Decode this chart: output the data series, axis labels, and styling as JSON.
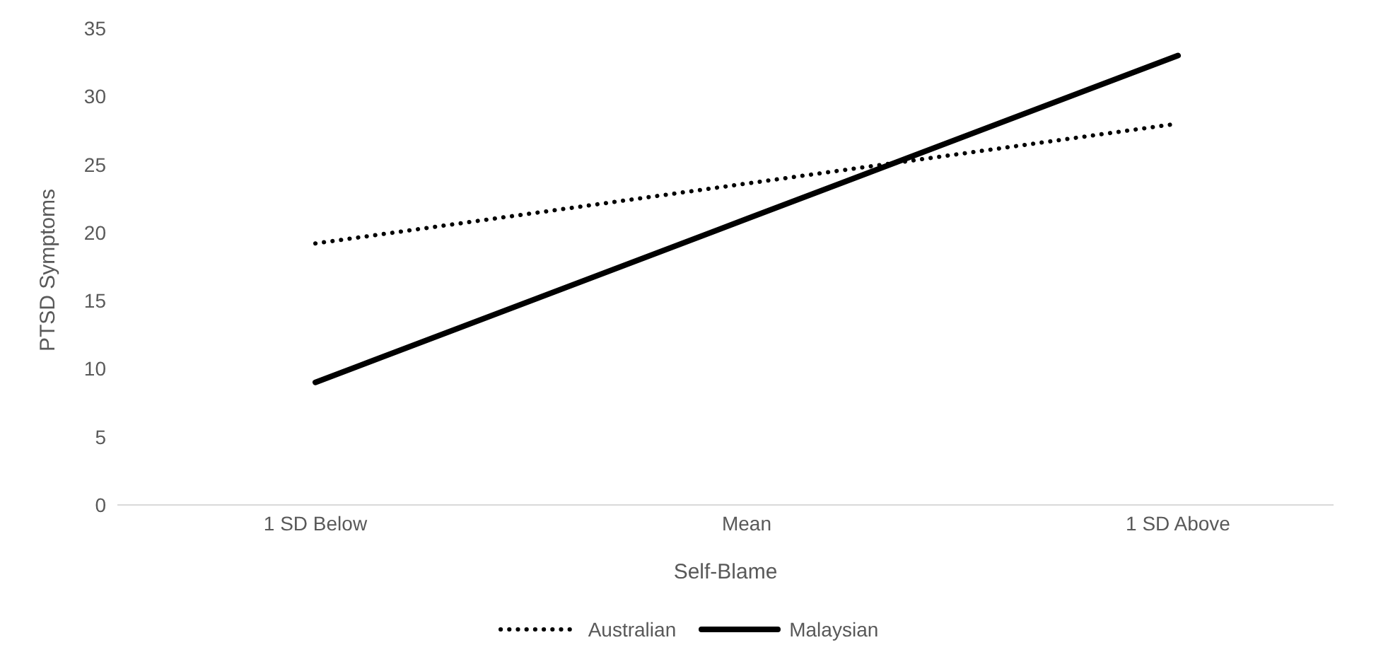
{
  "chart_data": {
    "type": "line",
    "xlabel": "Self-Blame",
    "ylabel": "PTSD Symptoms",
    "categories": [
      "1 SD Below",
      "Mean",
      "1 SD Above"
    ],
    "series": [
      {
        "name": "Australian",
        "color": "#000000",
        "line_style": "dotted",
        "values": [
          19.2,
          23.6,
          28
        ]
      },
      {
        "name": "Malaysian",
        "color": "#000000",
        "line_style": "solid",
        "values": [
          9,
          21,
          33
        ]
      }
    ],
    "ylim": [
      0,
      35
    ],
    "yticks": [
      0,
      5,
      10,
      15,
      20,
      25,
      30,
      35
    ],
    "grid": false,
    "legend": "bottom",
    "marker": "none"
  }
}
